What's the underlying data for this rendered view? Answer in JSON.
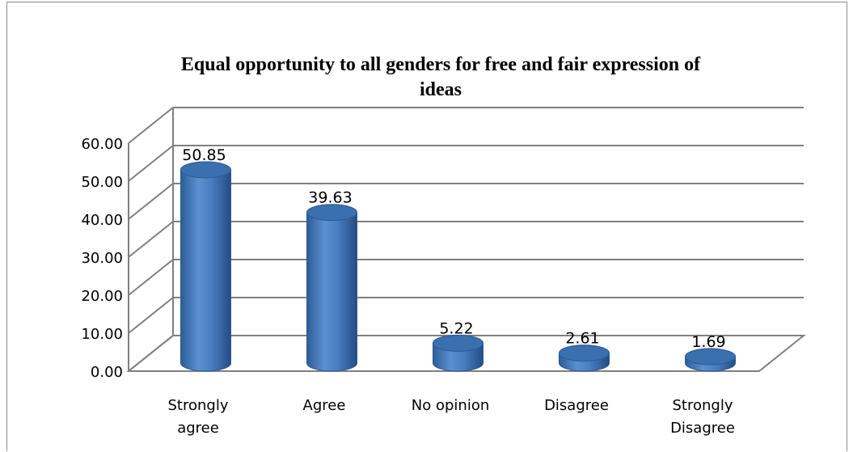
{
  "chart_data": {
    "type": "bar",
    "style": "3d-cylinder",
    "title": "Equal opportunity to all genders for free and fair expression of ideas",
    "title_lines": [
      "Equal opportunity to all genders for free and fair expression of",
      "ideas"
    ],
    "categories": [
      "Strongly agree",
      "Agree",
      "No opinion",
      "Disagree",
      "Strongly Disagree"
    ],
    "category_lines": [
      [
        "Strongly",
        "agree"
      ],
      [
        "Agree"
      ],
      [
        "No opinion"
      ],
      [
        "Disagree"
      ],
      [
        "Strongly",
        "Disagree"
      ]
    ],
    "values": [
      50.85,
      39.63,
      5.22,
      2.61,
      1.69
    ],
    "value_labels": [
      "50.85",
      "39.63",
      "5.22",
      "2.61",
      "1.69"
    ],
    "ylim": [
      0,
      60
    ],
    "yticks": [
      0,
      10,
      20,
      30,
      40,
      50,
      60
    ],
    "ytick_labels": [
      "0.00",
      "10.00",
      "20.00",
      "30.00",
      "40.00",
      "50.00",
      "60.00"
    ],
    "xlabel": "",
    "ylabel": "",
    "grid": true,
    "legend": false,
    "colors": {
      "bar": "#4f81bd",
      "bar_dark": "#2c5a93",
      "bar_top": "#3a6fb0",
      "grid": "#7f7f7f"
    }
  }
}
